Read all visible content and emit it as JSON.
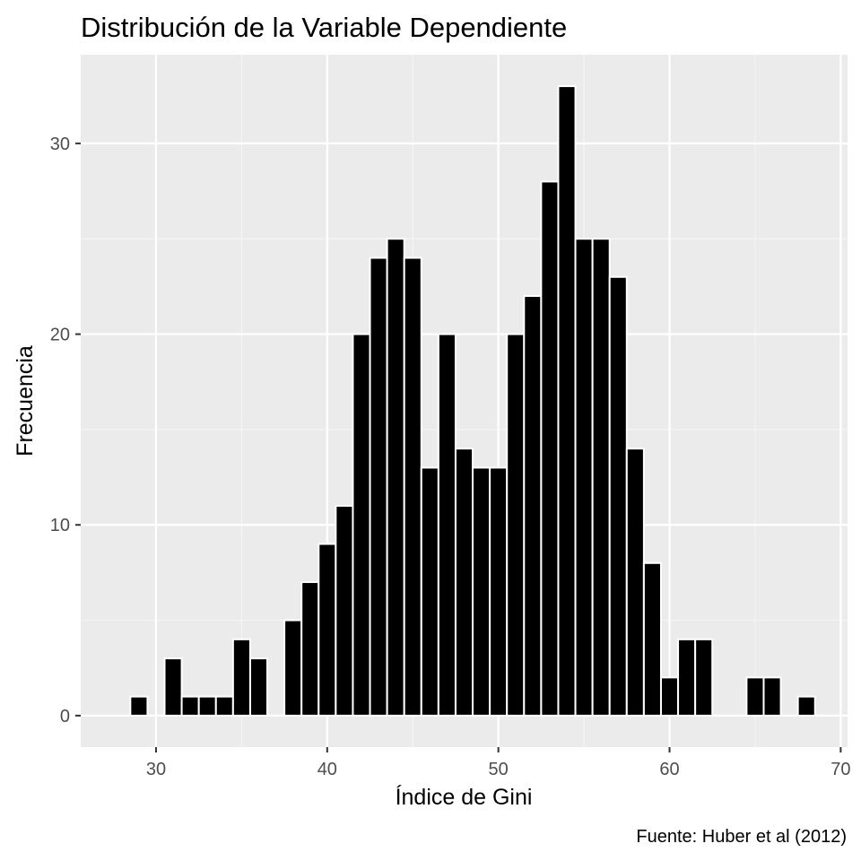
{
  "chart_data": {
    "type": "bar",
    "subtype": "histogram",
    "title": "Distribución de la Variable Dependiente",
    "xlabel": "Índice de Gini",
    "ylabel": "Frecuencia",
    "caption": "Fuente: Huber et al (2012)",
    "bin_width": 1,
    "bins": [
      {
        "x": 29,
        "count": 1
      },
      {
        "x": 30,
        "count": 0
      },
      {
        "x": 31,
        "count": 3
      },
      {
        "x": 32,
        "count": 1
      },
      {
        "x": 33,
        "count": 1
      },
      {
        "x": 34,
        "count": 1
      },
      {
        "x": 35,
        "count": 4
      },
      {
        "x": 36,
        "count": 3
      },
      {
        "x": 37,
        "count": 0
      },
      {
        "x": 38,
        "count": 5
      },
      {
        "x": 39,
        "count": 7
      },
      {
        "x": 40,
        "count": 9
      },
      {
        "x": 41,
        "count": 11
      },
      {
        "x": 42,
        "count": 20
      },
      {
        "x": 43,
        "count": 24
      },
      {
        "x": 44,
        "count": 25
      },
      {
        "x": 45,
        "count": 24
      },
      {
        "x": 46,
        "count": 13
      },
      {
        "x": 47,
        "count": 20
      },
      {
        "x": 48,
        "count": 14
      },
      {
        "x": 49,
        "count": 13
      },
      {
        "x": 50,
        "count": 13
      },
      {
        "x": 51,
        "count": 20
      },
      {
        "x": 52,
        "count": 22
      },
      {
        "x": 53,
        "count": 28
      },
      {
        "x": 54,
        "count": 33
      },
      {
        "x": 55,
        "count": 25
      },
      {
        "x": 56,
        "count": 25
      },
      {
        "x": 57,
        "count": 23
      },
      {
        "x": 58,
        "count": 14
      },
      {
        "x": 59,
        "count": 8
      },
      {
        "x": 60,
        "count": 2
      },
      {
        "x": 61,
        "count": 4
      },
      {
        "x": 62,
        "count": 4
      },
      {
        "x": 63,
        "count": 0
      },
      {
        "x": 64,
        "count": 0
      },
      {
        "x": 65,
        "count": 2
      },
      {
        "x": 66,
        "count": 2
      },
      {
        "x": 67,
        "count": 0
      },
      {
        "x": 68,
        "count": 1
      }
    ],
    "x_ticks": [
      30,
      40,
      50,
      60,
      70
    ],
    "y_ticks": [
      0,
      10,
      20,
      30
    ],
    "xlim": [
      25.6,
      70.4
    ],
    "ylim": [
      -1.65,
      34.65
    ],
    "grid": true,
    "legend": "none",
    "colors": {
      "bar_fill": "#000000",
      "bar_outline": "#ffffff",
      "panel_background": "#ebebeb",
      "grid_major": "#ffffff",
      "grid_minor": "#f5f5f5",
      "tick_label": "#4d4d4d"
    }
  }
}
